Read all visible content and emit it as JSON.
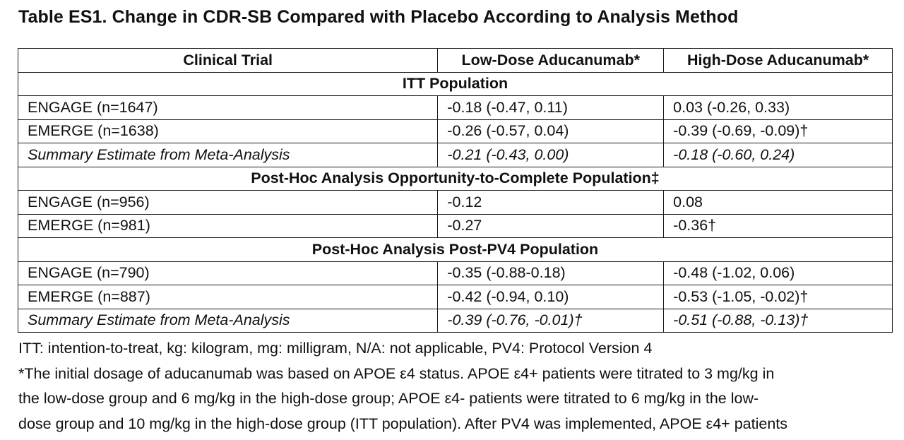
{
  "title": "Table ES1. Change in CDR-SB Compared with Placebo According to Analysis Method",
  "table": {
    "headers": [
      "Clinical Trial",
      "Low-Dose Aducanumab*",
      "High-Dose Aducanumab*"
    ],
    "sections": [
      {
        "label": "ITT Population",
        "rows": [
          {
            "trial": "ENGAGE (n=1647)",
            "low": "-0.18 (-0.47, 0.11)",
            "high": "0.03 (-0.26, 0.33)",
            "italic": false
          },
          {
            "trial": "EMERGE (n=1638)",
            "low": "-0.26 (-0.57, 0.04)",
            "high": "-0.39 (-0.69, -0.09)†",
            "italic": false
          },
          {
            "trial": "Summary Estimate from Meta-Analysis",
            "low": "-0.21 (-0.43, 0.00)",
            "high": "-0.18 (-0.60, 0.24)",
            "italic": true
          }
        ]
      },
      {
        "label": "Post-Hoc Analysis Opportunity-to-Complete Population‡",
        "rows": [
          {
            "trial": "ENGAGE (n=956)",
            "low": "-0.12",
            "high": "0.08",
            "italic": false
          },
          {
            "trial": "EMERGE (n=981)",
            "low": "-0.27",
            "high": "-0.36†",
            "italic": false
          }
        ]
      },
      {
        "label": "Post-Hoc Analysis Post-PV4 Population",
        "rows": [
          {
            "trial": "ENGAGE (n=790)",
            "low": "-0.35 (-0.88-0.18)",
            "high": "-0.48 (-1.02, 0.06)",
            "italic": false
          },
          {
            "trial": "EMERGE (n=887)",
            "low": "-0.42 (-0.94, 0.10)",
            "high": "-0.53 (-1.05, -0.02)†",
            "italic": false
          },
          {
            "trial": "Summary Estimate from Meta-Analysis",
            "low": "-0.39 (-0.76, -0.01)†",
            "high": "-0.51 (-0.88, -0.13)†",
            "italic": true
          }
        ]
      }
    ]
  },
  "notes": {
    "abbreviations": "ITT: intention-to-treat, kg: kilogram, mg: milligram, N/A: not applicable, PV4: Protocol Version 4",
    "dosage_line1": "*The initial dosage of aducanumab was based on APOE ε4 status. APOE ε4+ patients were titrated to 3 mg/kg in",
    "dosage_line2": "the low-dose group and 6 mg/kg in the high-dose group; APOE ε4- patients were titrated to 6 mg/kg in the low-",
    "dosage_line3": "dose group and 10 mg/kg in the high-dose group (ITT population). After PV4 was implemented, APOE ε4+ patients"
  }
}
